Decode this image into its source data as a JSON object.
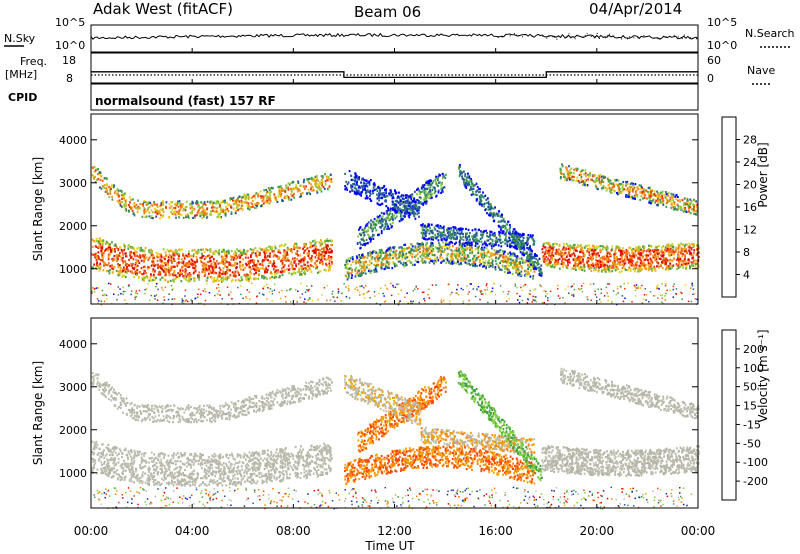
{
  "header": {
    "station": "Adak West (fitACF)",
    "beam": "Beam 06",
    "date": "04/Apr/2014"
  },
  "top_panel": {
    "left_label": "N.Sky",
    "right_label": "N.Search",
    "left_ticks": [
      "10^5",
      "10^0"
    ],
    "right_ticks": [
      "10^5",
      "10^0"
    ]
  },
  "freq_panel": {
    "left_label_1": "Freq.",
    "left_label_2": "[MHz]",
    "right_label": "Nave",
    "left_ticks": [
      "18",
      "8"
    ],
    "right_ticks": [
      "60",
      "0"
    ]
  },
  "cpid_panel": {
    "label": "CPID",
    "text": "normalsound (fast) 157 RF"
  },
  "colors": {
    "power": [
      "#0000ff",
      "#1f4fa6",
      "#2f7a6b",
      "#46a048",
      "#8fc83a",
      "#e8d020",
      "#f2a418",
      "#f07010",
      "#e83010",
      "#e00000"
    ],
    "velocity": [
      "#e00000",
      "#ff4000",
      "#ff8000",
      "#f0a000",
      "#b4b4a6",
      "#bebeb0",
      "#80d040",
      "#40a040",
      "#2050a0",
      "#1020b0"
    ]
  },
  "chart_data": [
    {
      "type": "heatmap",
      "title": "",
      "xlabel": "Time UT",
      "ylabel": "Slant Range [km]",
      "xticks": [
        "00:00",
        "04:00",
        "08:00",
        "12:00",
        "16:00",
        "20:00",
        "00:00"
      ],
      "xlim_hours": [
        0,
        24
      ],
      "ylim_km": [
        180,
        4600
      ],
      "yticks": [
        "1000",
        "2000",
        "3000",
        "4000"
      ],
      "colorbar_label": "Power [dB]",
      "colorbar_ticks": [
        "4",
        "8",
        "12",
        "16",
        "20",
        "24",
        "28"
      ],
      "colorbar_range": [
        0,
        32
      ]
    },
    {
      "type": "heatmap",
      "title": "",
      "xlabel": "Time UT",
      "ylabel": "Slant Range [km]",
      "xticks": [
        "00:00",
        "04:00",
        "08:00",
        "12:00",
        "16:00",
        "20:00",
        "00:00"
      ],
      "xlim_hours": [
        0,
        24
      ],
      "ylim_km": [
        180,
        4600
      ],
      "yticks": [
        "1000",
        "2000",
        "3000",
        "4000"
      ],
      "colorbar_label": "Velocity [m s⁻¹]",
      "colorbar_ticks": [
        "200",
        "100",
        "50",
        "15",
        "-15",
        "-50",
        "-100",
        "-200"
      ]
    },
    {
      "type": "line",
      "title": "",
      "series_frequency_step": [
        {
          "x_hours": 0,
          "freq_mhz": 12
        },
        {
          "x_hours": 10,
          "freq_mhz": 10
        },
        {
          "x_hours": 18,
          "freq_mhz": 12
        }
      ]
    }
  ]
}
